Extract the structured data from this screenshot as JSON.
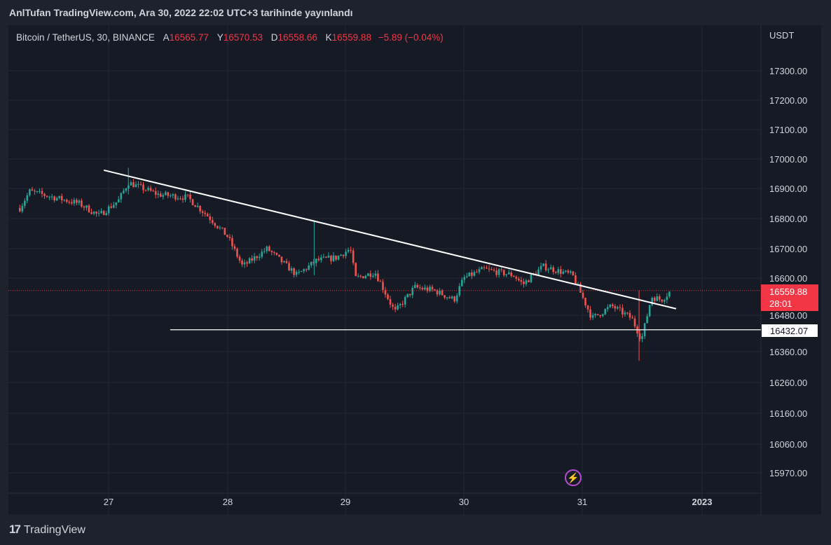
{
  "header_note": "AnlTufan TradingView.com, Ara 30, 2022 22:02 UTC+3 tarihinde yayınlandı",
  "legend": {
    "symbol": "Bitcoin / TetherUS, 30, BINANCE",
    "open_label": "A",
    "open": "16565.77",
    "high_label": "Y",
    "high": "16570.53",
    "low_label": "D",
    "low": "16558.66",
    "close_label": "K",
    "close": "16559.88",
    "change": "−5.89 (−0.04%)"
  },
  "price_unit": "USDT",
  "last_price_tag": {
    "price": "16559.88",
    "countdown": "28:01"
  },
  "level_tag": "16432.07",
  "footer_logo": {
    "mark": "17",
    "text": "TradingView"
  },
  "bolt_icon": "lightning-bolt-icon",
  "colors": {
    "up": "#26a69a",
    "down": "#ef5350",
    "background": "#161a25",
    "accent": "#f23645"
  },
  "chart_data": {
    "type": "candlestick",
    "interval": "30",
    "y_ticks": [
      "17300.00",
      "17200.00",
      "17100.00",
      "17000.00",
      "16900.00",
      "16800.00",
      "16700.00",
      "16600.00",
      "16480.00",
      "16360.00",
      "16260.00",
      "16160.00",
      "16060.00",
      "15970.00"
    ],
    "x_ticks": [
      "27",
      "28",
      "29",
      "30",
      "31",
      "2023"
    ],
    "ylim": [
      15940,
      17380
    ],
    "grid": true,
    "last_price": 16559.88,
    "horizontal_level": 16432.07,
    "trendline": {
      "start": [
        "Dec 26 23:00",
        16962
      ],
      "end": [
        "Dec 31 19:00",
        16501
      ]
    },
    "anchors": [
      [
        "Dec 26 06:00",
        16835
      ],
      [
        "Dec 26 08:00",
        16890
      ],
      [
        "Dec 26 18:00",
        16850
      ],
      [
        "Dec 26 22:00",
        16810
      ],
      [
        "Dec 27 02:00",
        16860
      ],
      [
        "Dec 27 04:00",
        16920
      ],
      [
        "Dec 27 10:00",
        16880
      ],
      [
        "Dec 27 16:00",
        16870
      ],
      [
        "Dec 27 20:00",
        16810
      ],
      [
        "Dec 28 00:00",
        16740
      ],
      [
        "Dec 28 03:00",
        16640
      ],
      [
        "Dec 28 08:00",
        16700
      ],
      [
        "Dec 28 14:00",
        16610
      ],
      [
        "Dec 28 18:00",
        16660
      ],
      [
        "Dec 28 22:00",
        16670
      ],
      [
        "Dec 29 01:00",
        16700
      ],
      [
        "Dec 29 02:00",
        16600
      ],
      [
        "Dec 29 06:00",
        16620
      ],
      [
        "Dec 29 10:00",
        16490
      ],
      [
        "Dec 29 14:00",
        16570
      ],
      [
        "Dec 29 18:00",
        16560
      ],
      [
        "Dec 29 22:00",
        16530
      ],
      [
        "Dec 30 00:00",
        16600
      ],
      [
        "Dec 30 04:00",
        16630
      ],
      [
        "Dec 30 10:00",
        16610
      ],
      [
        "Dec 30 12:00",
        16580
      ],
      [
        "Dec 30 16:00",
        16640
      ],
      [
        "Dec 30 22:00",
        16610
      ],
      [
        "Dec 31 02:00",
        16470
      ],
      [
        "Dec 31 06:00",
        16510
      ],
      [
        "Dec 31 10:00",
        16470
      ],
      [
        "Dec 31 12:00",
        16400
      ],
      [
        "Dec 31 14:00",
        16540
      ],
      [
        "Dec 31 16:00",
        16530
      ],
      [
        "Dec 31 18:00",
        16560
      ]
    ]
  }
}
